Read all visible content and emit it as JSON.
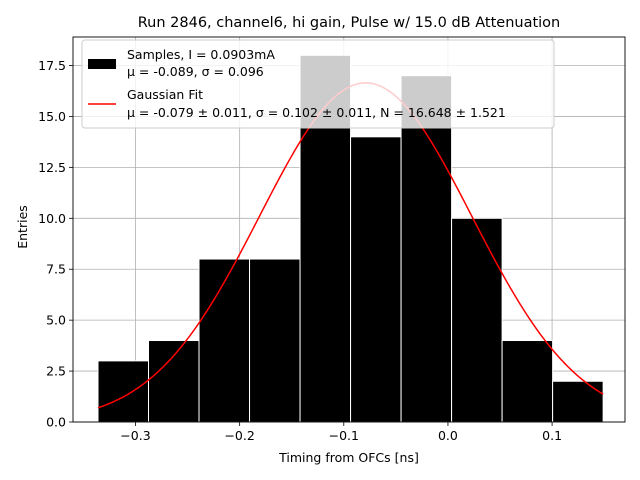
{
  "chart_data": {
    "type": "bar",
    "title": "Run 2846, channel6, hi gain, Pulse w/ 15.0 dB Attenuation",
    "xlabel": "Timing from OFCs [ns]",
    "ylabel": "Entries",
    "xlim": [
      -0.36,
      0.17
    ],
    "ylim": [
      0,
      18.9
    ],
    "xticks": [
      -0.3,
      -0.2,
      -0.1,
      0.0,
      0.1
    ],
    "xtick_labels": [
      "−0.3",
      "−0.2",
      "−0.1",
      "0.0",
      "0.1"
    ],
    "yticks": [
      0.0,
      2.5,
      5.0,
      7.5,
      10.0,
      12.5,
      15.0,
      17.5
    ],
    "ytick_labels": [
      "0.0",
      "2.5",
      "5.0",
      "7.5",
      "10.0",
      "12.5",
      "15.0",
      "17.5"
    ],
    "grid": true,
    "legend_position": "top-left",
    "bins": {
      "edges": [
        -0.336,
        -0.2875,
        -0.239,
        -0.1905,
        -0.142,
        -0.0935,
        -0.045,
        0.0035,
        0.052,
        0.1005,
        0.149
      ],
      "counts": [
        3,
        4,
        8,
        8,
        18,
        14,
        17,
        10,
        4,
        2
      ]
    },
    "series": [
      {
        "name": "Samples, I = 0.0903mA",
        "subtitle": "μ = -0.089, σ = 0.096",
        "type": "histogram",
        "color": "#000000"
      },
      {
        "name": "Gaussian Fit",
        "subtitle": "μ = -0.079 ± 0.011, σ = 0.102 ± 0.011, N = 16.648 ± 1.521",
        "type": "line",
        "color": "#ff0000",
        "fit": {
          "mu": -0.079,
          "sigma": 0.102,
          "N": 16.648,
          "x_range": [
            -0.336,
            0.149
          ]
        }
      }
    ]
  }
}
